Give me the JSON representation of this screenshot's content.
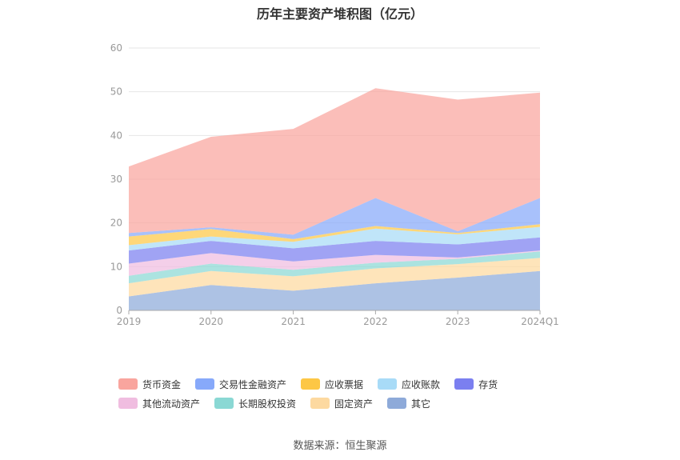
{
  "title": "历年主要资产堆积图（亿元）",
  "source": "数据来源：恒生聚源",
  "chart_data": {
    "type": "area",
    "stacked": true,
    "categories": [
      "2019",
      "2020",
      "2021",
      "2022",
      "2023",
      "2024Q1"
    ],
    "ylim": [
      0,
      60
    ],
    "yticks": [
      0,
      10,
      20,
      30,
      40,
      50,
      60
    ],
    "grid": true,
    "legend_position": "bottom",
    "series": [
      {
        "name": "其它",
        "color": "#8eaad9",
        "values": [
          3.2,
          5.8,
          4.5,
          6.2,
          7.5,
          9.0
        ]
      },
      {
        "name": "固定资产",
        "color": "#fdd9a0",
        "values": [
          3.0,
          3.2,
          3.3,
          3.4,
          3.1,
          3.0
        ]
      },
      {
        "name": "长期股权投资",
        "color": "#8ad8d4",
        "values": [
          1.7,
          1.7,
          1.5,
          1.3,
          1.2,
          1.5
        ]
      },
      {
        "name": "其他流动资产",
        "color": "#f0bde0",
        "values": [
          2.8,
          2.4,
          1.9,
          1.8,
          0.3,
          0.2
        ]
      },
      {
        "name": "存货",
        "color": "#7b7ff0",
        "values": [
          3.0,
          2.8,
          3.0,
          3.2,
          3.0,
          3.0
        ]
      },
      {
        "name": "应收账款",
        "color": "#a8dbf7",
        "values": [
          1.2,
          1.0,
          1.5,
          2.8,
          2.3,
          2.4
        ]
      },
      {
        "name": "应收票据",
        "color": "#fdc745",
        "values": [
          2.0,
          1.7,
          0.6,
          0.6,
          0.3,
          0.6
        ]
      },
      {
        "name": "交易性金融资产",
        "color": "#87a9fa",
        "values": [
          0.8,
          0.4,
          1.0,
          6.4,
          0.4,
          6.0
        ]
      },
      {
        "name": "货币资金",
        "color": "#f9a59e",
        "values": [
          15.2,
          20.7,
          24.2,
          25.1,
          30.1,
          24.1
        ]
      }
    ]
  }
}
